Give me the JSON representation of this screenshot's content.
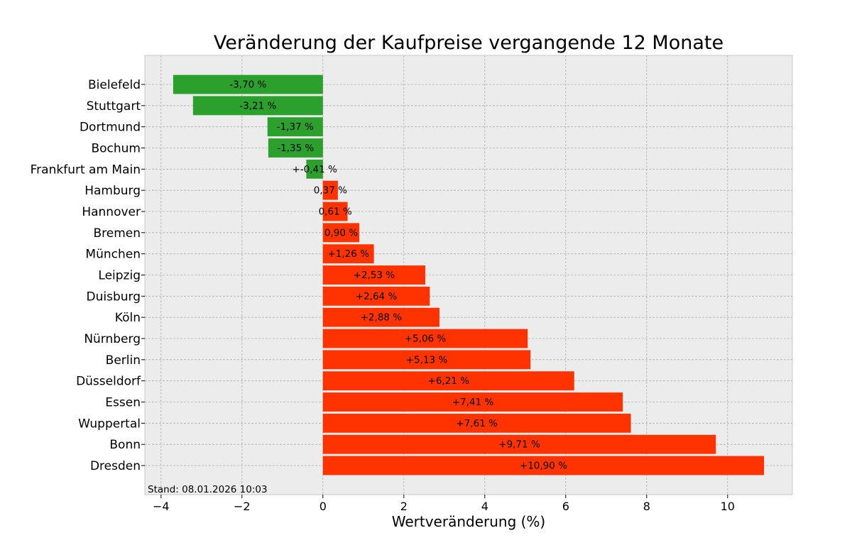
{
  "chart_data": {
    "type": "bar",
    "orientation": "horizontal",
    "title": "Veränderung der Kaufpreise vergangende 12 Monate",
    "xlabel": "Wertveränderung (%)",
    "ylabel": "",
    "xlim": [
      -4.4,
      11.6
    ],
    "xticks": [
      -4,
      -2,
      0,
      2,
      4,
      6,
      8,
      10
    ],
    "xtick_labels": [
      "−4",
      "−2",
      "0",
      "2",
      "4",
      "6",
      "8",
      "10"
    ],
    "grid": true,
    "categories": [
      "Bielefeld",
      "Stuttgart",
      "Dortmund",
      "Bochum",
      "Frankfurt am Main",
      "Hamburg",
      "Hannover",
      "Bremen",
      "München",
      "Leipzig",
      "Duisburg",
      "Köln",
      "Nürnberg",
      "Berlin",
      "Düsseldorf",
      "Essen",
      "Wuppertal",
      "Bonn",
      "Dresden"
    ],
    "values": [
      -3.7,
      -3.21,
      -1.37,
      -1.35,
      -0.41,
      0.37,
      0.61,
      0.9,
      1.26,
      2.53,
      2.64,
      2.88,
      5.06,
      5.13,
      6.21,
      7.41,
      7.61,
      9.71,
      10.9
    ],
    "labels": [
      "-3,70 %",
      "-3,21 %",
      "-1,37 %",
      "-1,35 %",
      "+-0,41 %",
      "0,37 %",
      "0,61 %",
      "0,90 %",
      "+1,26 %",
      "+2,53 %",
      "+2,64 %",
      "+2,88 %",
      "+5,06 %",
      "+5,13 %",
      "+6,21 %",
      "+7,41 %",
      "+7,61 %",
      "+9,71 %",
      "+10,90 %"
    ],
    "colors": {
      "negative": "#2ca02c",
      "positive": "#ff3300",
      "background": "#ececec",
      "grid": "#b0b0b0"
    },
    "annotation": "Stand: 08.01.2026 10:03"
  }
}
